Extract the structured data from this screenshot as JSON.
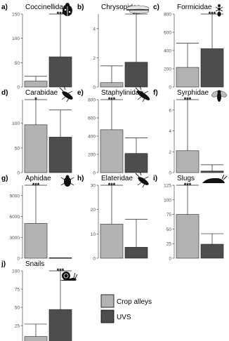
{
  "legend": {
    "items": [
      {
        "label": "Crop alleys",
        "color": "#b3b3b3"
      },
      {
        "label": "UVS",
        "color": "#4d4d4d"
      }
    ]
  },
  "chart_data": [
    {
      "type": "bar",
      "panel_letter": "a)",
      "title": "Coccinellidae",
      "icon": "ladybird-icon",
      "categories": [
        "Crop alleys",
        "UVS"
      ],
      "values": [
        12,
        62
      ],
      "upper_error": [
        22,
        150
      ],
      "ylim": [
        0,
        150
      ],
      "yticks": [
        "0",
        "50",
        "100",
        "150"
      ],
      "yticks_values": [
        0,
        50,
        100,
        150
      ],
      "significance": "***",
      "significance_bar": "UVS"
    },
    {
      "type": "bar",
      "panel_letter": "b)",
      "title": "Chrysopidae",
      "icon": "lacewing-icon",
      "categories": [
        "Crop alleys",
        "UVS"
      ],
      "values": [
        0.3,
        1.7
      ],
      "upper_error": [
        1.45,
        5.0
      ],
      "ylim": [
        0,
        5.0
      ],
      "yticks": [
        "0",
        "2",
        "4"
      ],
      "yticks_values": [
        0,
        2,
        4
      ],
      "significance": "***",
      "significance_bar": "UVS"
    },
    {
      "type": "bar",
      "panel_letter": "c)",
      "title": "Formicidae",
      "icon": "ant-icon",
      "categories": [
        "Crop alleys",
        "UVS"
      ],
      "values": [
        215,
        420
      ],
      "upper_error": [
        480,
        800
      ],
      "ylim": [
        0,
        800
      ],
      "yticks": [
        "0",
        "200",
        "400",
        "600",
        "800"
      ],
      "yticks_values": [
        0,
        200,
        400,
        600,
        800
      ],
      "significance": "***",
      "significance_bar": "UVS"
    },
    {
      "type": "bar",
      "panel_letter": "d)",
      "title": "Carabidae",
      "icon": "ground-beetle-icon",
      "categories": [
        "Crop alleys",
        "UVS"
      ],
      "values": [
        97,
        72
      ],
      "upper_error": [
        148,
        127
      ],
      "ylim": [
        0,
        148
      ],
      "yticks": [
        "0",
        "50",
        "100"
      ],
      "yticks_values": [
        0,
        50,
        100
      ],
      "significance": "*",
      "significance_bar": "Crop alleys"
    },
    {
      "type": "bar",
      "panel_letter": "e)",
      "title": "Staphylinidae",
      "icon": "rove-beetle-icon",
      "categories": [
        "Crop alleys",
        "UVS"
      ],
      "values": [
        470,
        210
      ],
      "upper_error": [
        800,
        380
      ],
      "ylim": [
        0,
        800
      ],
      "yticks": [
        "0",
        "200",
        "400",
        "600",
        "800"
      ],
      "yticks_values": [
        0,
        200,
        400,
        600,
        800
      ],
      "significance": "***",
      "significance_bar": "Crop alleys"
    },
    {
      "type": "bar",
      "panel_letter": "f)",
      "title": "Syrphidae",
      "icon": "hoverfly-icon",
      "categories": [
        "Crop alleys",
        "UVS"
      ],
      "values": [
        2.1,
        0.15
      ],
      "upper_error": [
        7.0,
        0.75
      ],
      "ylim": [
        0,
        7.0
      ],
      "yticks": [
        "0",
        "2",
        "4",
        "6"
      ],
      "yticks_values": [
        0,
        2,
        4,
        6
      ],
      "significance": "***",
      "significance_bar": "Crop alleys"
    },
    {
      "type": "bar",
      "panel_letter": "g)",
      "title": "Aphidae",
      "icon": "aphid-icon",
      "categories": [
        "Crop alleys",
        "UVS"
      ],
      "values": [
        5000,
        60
      ],
      "upper_error": [
        10500,
        60
      ],
      "ylim": [
        0,
        10500
      ],
      "yticks": [
        "0",
        "3000",
        "6000",
        "9000"
      ],
      "yticks_values": [
        0,
        3000,
        6000,
        9000
      ],
      "significance": "***",
      "significance_bar": "Crop alleys"
    },
    {
      "type": "bar",
      "panel_letter": "h)",
      "title": "Elateridae",
      "icon": "click-beetle-icon",
      "categories": [
        "Crop alleys",
        "UVS"
      ],
      "values": [
        14,
        4.5
      ],
      "upper_error": [
        30,
        16
      ],
      "ylim": [
        0,
        30
      ],
      "yticks": [
        "0",
        "10",
        "20",
        "30"
      ],
      "yticks_values": [
        0,
        10,
        20,
        30
      ],
      "significance": "***",
      "significance_bar": "Crop alleys"
    },
    {
      "type": "bar",
      "panel_letter": "i)",
      "title": "Slugs",
      "icon": "slug-icon",
      "categories": [
        "Crop alleys",
        "UVS"
      ],
      "values": [
        75,
        24
      ],
      "upper_error": [
        125,
        42
      ],
      "ylim": [
        0,
        125
      ],
      "yticks": [
        "0",
        "25",
        "50",
        "75",
        "100",
        "125"
      ],
      "yticks_values": [
        0,
        25,
        50,
        75,
        100,
        125
      ],
      "significance": "***",
      "significance_bar": "Crop alleys"
    },
    {
      "type": "bar",
      "panel_letter": "j)",
      "title": "Snails",
      "icon": "snail-icon",
      "categories": [
        "Crop alleys",
        "UVS"
      ],
      "values": [
        10,
        47
      ],
      "upper_error": [
        27,
        100
      ],
      "ylim": [
        0,
        100
      ],
      "yticks": [
        "0",
        "25",
        "50",
        "75",
        "100"
      ],
      "yticks_values": [
        0,
        25,
        50,
        75,
        100
      ],
      "significance": "***",
      "significance_bar": "UVS"
    }
  ]
}
